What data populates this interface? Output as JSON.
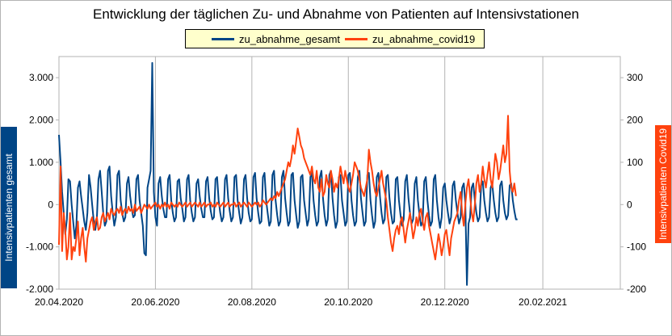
{
  "chart_data": {
    "type": "line",
    "title": "Entwicklung der täglichen Zu- und Abnahme von Patienten auf Intensivstationen",
    "ylabel_left": "Intensivpatienten gesamt",
    "ylabel_right": "Intensivpatienten Covid19",
    "x_tick_labels": [
      "20.04.2020",
      "20.06.2020",
      "20.08.2020",
      "20.10.2020",
      "20.12.2020",
      "20.02.2021"
    ],
    "x_range": [
      "2020-04-20",
      "2021-04-10"
    ],
    "y_left_ticks": [
      "3.000",
      "2.000",
      "1.000",
      "0",
      "-1.000",
      "-2.000"
    ],
    "y_left_range": [
      -2000,
      3500
    ],
    "y_right_ticks": [
      "300",
      "200",
      "100",
      "0",
      "-100",
      "-200"
    ],
    "y_right_range": [
      -200,
      350
    ],
    "grid": "vertical gridlines at x ticks",
    "legend_position": "top-center",
    "series": [
      {
        "name": "zu_abnahme_gesamt",
        "axis": "left",
        "color": "#004586",
        "start_date": "2020-04-20",
        "values": [
          1650,
          1000,
          300,
          -200,
          -700,
          -350,
          600,
          550,
          0,
          -400,
          -800,
          -500,
          400,
          550,
          200,
          -100,
          -400,
          -600,
          -200,
          700,
          400,
          0,
          -400,
          -600,
          -300,
          600,
          800,
          300,
          -200,
          -500,
          -400,
          800,
          900,
          200,
          -200,
          -500,
          -300,
          700,
          800,
          100,
          -200,
          -400,
          -300,
          500,
          650,
          200,
          -100,
          -300,
          -250,
          600,
          700,
          100,
          -200,
          -500,
          -1150,
          -1200,
          400,
          600,
          800,
          3350,
          300,
          -300,
          -500,
          500,
          650,
          200,
          -100,
          -300,
          -300,
          600,
          700,
          100,
          -200,
          -400,
          -300,
          550,
          600,
          150,
          -100,
          -400,
          -300,
          600,
          700,
          100,
          -200,
          -400,
          -300,
          500,
          600,
          200,
          -100,
          -300,
          -300,
          550,
          650,
          150,
          -150,
          -350,
          -300,
          600,
          650,
          100,
          -200,
          -400,
          -300,
          600,
          700,
          150,
          -150,
          -400,
          -300,
          650,
          700,
          100,
          -200,
          -450,
          -300,
          600,
          700,
          150,
          -200,
          -400,
          -350,
          650,
          750,
          150,
          -200,
          -450,
          -400,
          650,
          750,
          100,
          -200,
          -500,
          -400,
          700,
          800,
          100,
          -250,
          -500,
          -400,
          650,
          800,
          150,
          -200,
          -500,
          -400,
          700,
          750,
          100,
          -250,
          -550,
          -400,
          650,
          700,
          100,
          -200,
          -500,
          -350,
          650,
          750,
          100,
          -250,
          -500,
          -400,
          650,
          800,
          150,
          -250,
          -500,
          -350,
          700,
          800,
          150,
          -250,
          -550,
          -400,
          650,
          700,
          100,
          -200,
          -500,
          -400,
          700,
          750,
          100,
          -250,
          -500,
          -400,
          650,
          800,
          150,
          -200,
          -500,
          -400,
          700,
          750,
          100,
          -250,
          -550,
          -400,
          650,
          750,
          200,
          -200,
          -450,
          -350,
          650,
          700,
          150,
          -200,
          -450,
          -400,
          600,
          650,
          100,
          -250,
          -500,
          -350,
          550,
          700,
          150,
          -200,
          -450,
          -350,
          500,
          650,
          100,
          -250,
          -500,
          -400,
          550,
          650,
          100,
          -250,
          -500,
          -400,
          600,
          700,
          100,
          -300,
          -550,
          -300,
          400,
          500,
          100,
          -200,
          -450,
          -300,
          450,
          550,
          100,
          -200,
          -450,
          -300,
          400,
          500,
          50,
          -1900,
          -450,
          -300,
          400,
          500,
          100,
          -200,
          -400,
          -300,
          450,
          550,
          100,
          -200,
          -400,
          -300,
          400,
          500,
          100,
          -200,
          -400,
          -300,
          450,
          550,
          100,
          -200,
          -350,
          -250,
          450,
          500,
          100,
          -150,
          -350,
          -350
        ],
        "color_hex": "#004586"
      },
      {
        "name": "zu_abnahme_covid19",
        "axis": "right",
        "color": "#ff420e",
        "start_date": "2020-04-20",
        "values": [
          -95,
          90,
          -110,
          -20,
          -60,
          -130,
          -100,
          -20,
          -130,
          -100,
          -110,
          -80,
          -40,
          -120,
          -80,
          -55,
          -100,
          -135,
          -80,
          -60,
          -40,
          -30,
          -60,
          -40,
          -30,
          -60,
          -55,
          -30,
          -20,
          -40,
          -30,
          -20,
          -35,
          -10,
          -20,
          -25,
          -15,
          -10,
          -20,
          -5,
          -25,
          -15,
          -10,
          -20,
          -5,
          -15,
          -10,
          -20,
          0,
          -15,
          -10,
          -5,
          -20,
          -10,
          0,
          -5,
          -10,
          0,
          -10,
          -5,
          0,
          5,
          -5,
          0,
          -10,
          0,
          -5,
          5,
          -5,
          0,
          -10,
          5,
          0,
          -5,
          0,
          -5,
          5,
          0,
          -5,
          0,
          5,
          -5,
          0,
          5,
          -5,
          0,
          5,
          0,
          -5,
          5,
          -5,
          0,
          5,
          -5,
          0,
          0,
          5,
          -5,
          0,
          -5,
          5,
          0,
          -5,
          0,
          5,
          -5,
          0,
          5,
          -5,
          0,
          0,
          5,
          -5,
          0,
          5,
          -5,
          0,
          5,
          0,
          -5,
          5,
          0,
          -5,
          0,
          5,
          0,
          5,
          -5,
          0,
          10,
          5,
          0,
          5,
          10,
          15,
          10,
          20,
          15,
          30,
          20,
          30,
          40,
          50,
          60,
          80,
          100,
          90,
          110,
          140,
          120,
          150,
          180,
          160,
          140,
          130,
          110,
          100,
          90,
          80,
          70,
          90,
          60,
          50,
          80,
          40,
          30,
          60,
          20,
          30,
          70,
          50,
          40,
          80,
          60,
          30,
          50,
          40,
          60,
          90,
          70,
          50,
          80,
          60,
          40,
          30,
          50,
          70,
          100,
          90,
          80,
          60,
          40,
          30,
          20,
          40,
          60,
          130,
          100,
          80,
          50,
          30,
          20,
          40,
          60,
          80,
          50,
          30,
          10,
          -30,
          -60,
          -90,
          -110,
          -80,
          -60,
          -50,
          -70,
          -40,
          -30,
          -60,
          -90,
          -60,
          -40,
          -20,
          -50,
          -80,
          -60,
          -30,
          -50,
          -20,
          -10,
          -40,
          -60,
          -30,
          -20,
          -50,
          -70,
          -90,
          -110,
          -130,
          -100,
          -70,
          -90,
          -120,
          -100,
          -70,
          -60,
          -90,
          -120,
          -80,
          -60,
          -40,
          -30,
          -20,
          10,
          30,
          -20,
          -50,
          0,
          40,
          60,
          20,
          -20,
          -40,
          0,
          50,
          70,
          30,
          50,
          90,
          60,
          40,
          70,
          100,
          60,
          40,
          80,
          120,
          100,
          60,
          80,
          110,
          140,
          100,
          120,
          210,
          80,
          40,
          30,
          50,
          20
        ]
      }
    ]
  }
}
